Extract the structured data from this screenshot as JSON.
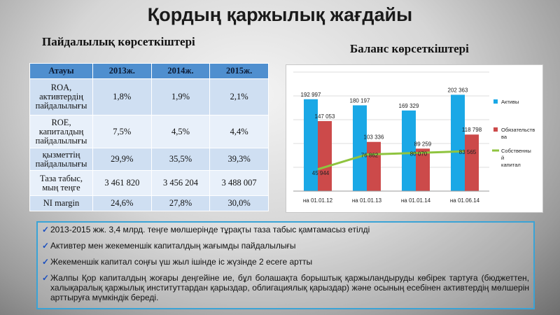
{
  "slide": {
    "title": "Қордың қаржылық жағдайы",
    "subtitle_left": "Пайдалылық көрсеткіштері",
    "subtitle_right": "Баланс көрсеткіштері"
  },
  "table": {
    "headers": [
      "Атауы",
      "2013ж.",
      "2014ж.",
      "2015ж."
    ],
    "rows": [
      {
        "name": "ROA, активтердің пайдалылығы",
        "v2013": "1,8%",
        "v2014": "1,9%",
        "v2015": "2,1%"
      },
      {
        "name": "ROE, капиталдың пайдалылығы",
        "v2013": "7,5%",
        "v2014": "4,5%",
        "v2015": "4,4%"
      },
      {
        "name": "қызметтің пайдалылығы",
        "v2013": "29,9%",
        "v2014": "35,5%",
        "v2015": "39,3%"
      },
      {
        "name": "Таза табыс, мың теңге",
        "v2013": "3 461 820",
        "v2014": "3 456 204",
        "v2015": "3 488 007"
      },
      {
        "name": "NI margin",
        "v2013": "24,6%",
        "v2014": "27,8%",
        "v2015": "30,0%"
      }
    ]
  },
  "chart_data": {
    "type": "bar",
    "title": "",
    "categories": [
      "на 01.01.12",
      "на 01.01.13",
      "на 01.01.14",
      "на 01.06.14"
    ],
    "series": [
      {
        "name": "Активы",
        "kind": "bar",
        "color": "#1aa8e6",
        "values": [
          192997,
          180197,
          169329,
          202363
        ],
        "labels": [
          "192 997",
          "180 197",
          "169 329",
          "202 363"
        ]
      },
      {
        "name": "Обязательства",
        "kind": "bar",
        "color": "#cc4a4a",
        "values": [
          147053,
          103336,
          89259,
          118798
        ],
        "labels": [
          "147 053",
          "103 336",
          "89 259",
          "118 798"
        ]
      },
      {
        "name": "Собственный капитал",
        "kind": "line",
        "color": "#8fc43f",
        "values": [
          45944,
          76862,
          80070,
          83565
        ],
        "labels": [
          "45 944",
          "76 862",
          "80 070",
          "83 565"
        ]
      }
    ],
    "legend_labels": [
      "Активы",
      "Обязательств ва",
      "Собственны й капитал"
    ],
    "ylim": [
      0,
      250000
    ],
    "grid": true,
    "legend_position": "right"
  },
  "notes": [
    "2013-2015 жж. 3,4 млрд. теңге мөлшерінде тұрақты таза табыс қамтамасыз етілді",
    "Активтер мен жекеменшік капиталдың жағымды  пайдалылығы",
    "Жекеменшік капитал соңғы үш жыл ішінде  іс жүзінде 2 есеге артты",
    "Жалпы Қор капиталдың жоғары деңгейіне ие, бұл болашақта борыштық қаржыландыруды  көбірек тартуға (бюджеттен, халықаралық қаржылық институттардан қарыздар, облигациялық қарыздар) және осының есебінен активтердің мөлшерін арттыруға мүмкіндік береді."
  ]
}
